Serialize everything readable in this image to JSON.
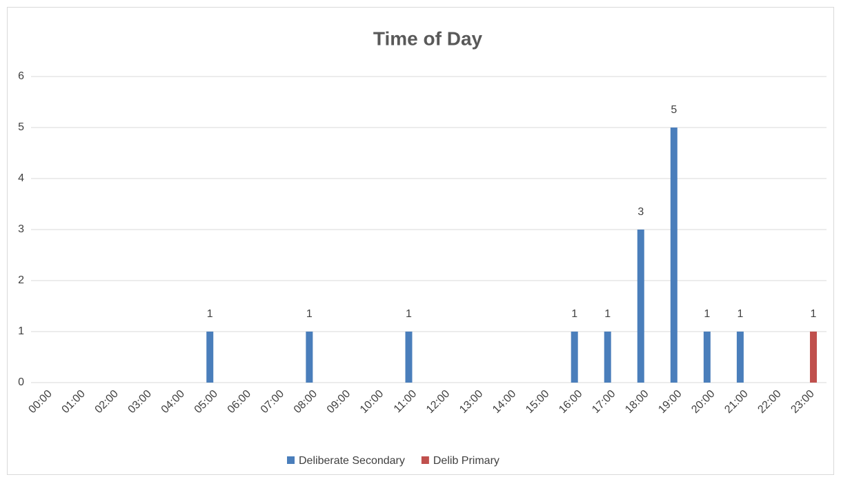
{
  "chart_data": {
    "type": "bar",
    "title": "Time of Day",
    "categories": [
      "00:00",
      "01:00",
      "02:00",
      "03:00",
      "04:00",
      "05:00",
      "06:00",
      "07:00",
      "08:00",
      "09:00",
      "10:00",
      "11:00",
      "12:00",
      "13:00",
      "14:00",
      "15:00",
      "16:00",
      "17:00",
      "18:00",
      "19:00",
      "20:00",
      "21:00",
      "22:00",
      "23:00"
    ],
    "series": [
      {
        "name": "Deliberate Secondary",
        "color": "#4a7ebb",
        "values": [
          null,
          null,
          null,
          null,
          null,
          1,
          null,
          null,
          1,
          null,
          null,
          1,
          null,
          null,
          null,
          null,
          1,
          1,
          3,
          5,
          1,
          1,
          null,
          null
        ]
      },
      {
        "name": "Delib Primary",
        "color": "#c0504d",
        "values": [
          null,
          null,
          null,
          null,
          null,
          null,
          null,
          null,
          null,
          null,
          null,
          null,
          null,
          null,
          null,
          null,
          null,
          null,
          null,
          null,
          null,
          null,
          null,
          1
        ]
      }
    ],
    "ylim": [
      0,
      6
    ],
    "yticks": [
      0,
      1,
      2,
      3,
      4,
      5,
      6
    ],
    "grid": true,
    "legend": "bottom"
  }
}
